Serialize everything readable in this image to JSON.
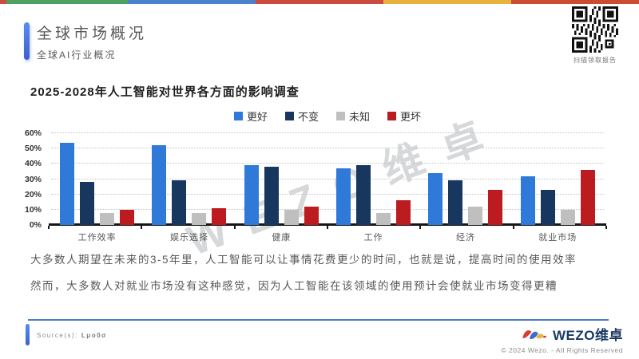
{
  "top_bar": {
    "segments": [
      {
        "color": "#ce4b3f",
        "width": 1
      },
      {
        "color": "#4da263",
        "width": 19
      },
      {
        "color": "#4b82cc",
        "width": 20
      },
      {
        "color": "#cc4b41",
        "width": 20
      },
      {
        "color": "#e8b33c",
        "width": 20
      },
      {
        "color": "#ce4b33",
        "width": 20
      }
    ]
  },
  "header": {
    "title": "全球市场概况",
    "subtitle": "全球AI行业概况",
    "accent_color": "#4472e8"
  },
  "qr": {
    "caption": "扫描领取报告"
  },
  "chart": {
    "watermark": "WEZO维卓"
  },
  "chart_data": {
    "type": "bar",
    "title": "2025-2028年人工智能对世界各方面的影响调查",
    "categories": [
      "工作效率",
      "娱乐选择",
      "健康",
      "工作",
      "经济",
      "就业市场"
    ],
    "series": [
      {
        "name": "更好",
        "color": "#2f7ad8",
        "values": [
          54,
          52,
          39,
          37,
          34,
          32
        ]
      },
      {
        "name": "不变",
        "color": "#17375e",
        "values": [
          28,
          29,
          38,
          39,
          29,
          23
        ]
      },
      {
        "name": "未知",
        "color": "#bfbfbf",
        "values": [
          8,
          8,
          10,
          8,
          12,
          10
        ]
      },
      {
        "name": "更坏",
        "color": "#bc1b20",
        "values": [
          10,
          11,
          12,
          16,
          23,
          36
        ]
      }
    ],
    "xlabel": "",
    "ylabel": "",
    "ylim": [
      0,
      60
    ],
    "yticks": [
      "0%",
      "10%",
      "20%",
      "30%",
      "40%",
      "50%",
      "60%"
    ],
    "grid": "horizontal-dotted",
    "legend_position": "top"
  },
  "body_text": {
    "line1": "大多数人期望在未来的3-5年里，人工智能可以让事情花费更少的时间，也就是说，提高时间的使用效率",
    "line2": "然而，大多数人对就业市场没有这种感觉，因为人工智能在该领域的使用预计会使就业市场变得更糟"
  },
  "footer": {
    "source_label": "Source(s):",
    "source_value": "Lμo0σ",
    "brand": "WEZO维卓",
    "copyright": "© 2024 Wezo. - All Rights Reserved"
  }
}
